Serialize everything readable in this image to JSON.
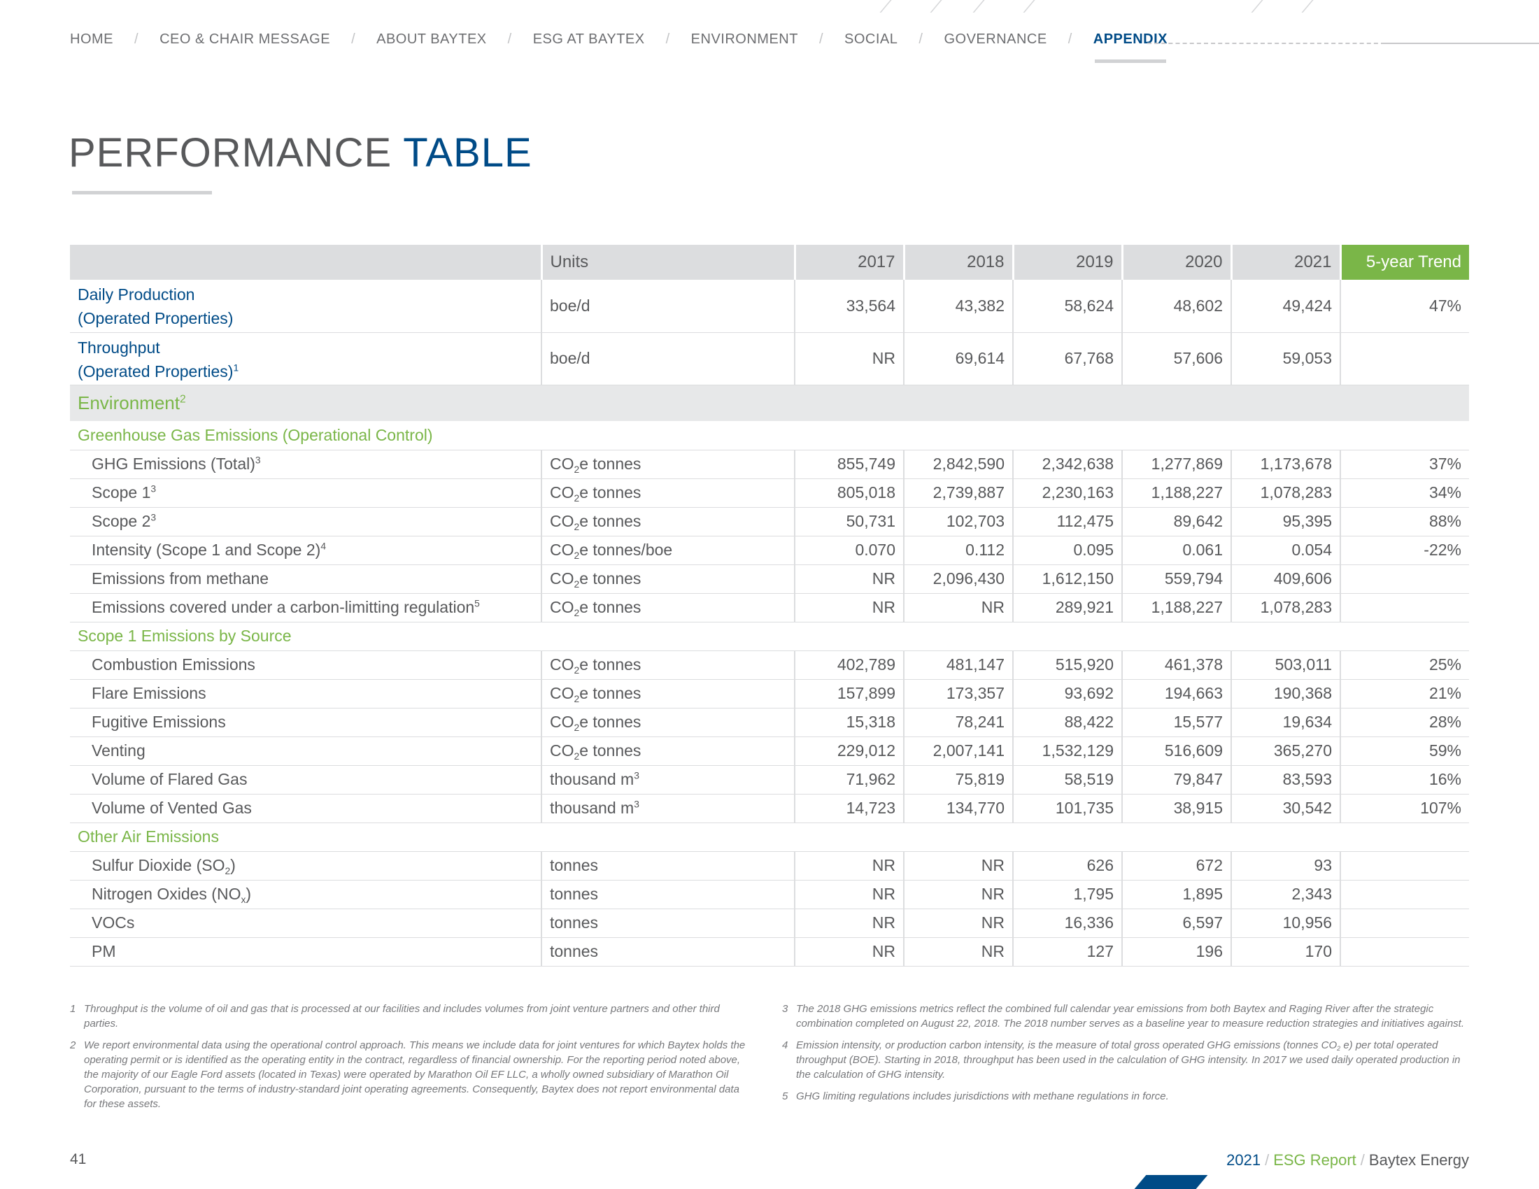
{
  "nav": {
    "items": [
      "HOME",
      "CEO & CHAIR MESSAGE",
      "ABOUT BAYTEX",
      "ESG AT BAYTEX",
      "ENVIRONMENT",
      "SOCIAL",
      "GOVERNANCE",
      "APPENDIX"
    ],
    "separator": "/",
    "active": "APPENDIX"
  },
  "title": {
    "part1": "PERFORMANCE",
    "part2": "TABLE"
  },
  "table": {
    "header": {
      "units": "Units",
      "years": [
        "2017",
        "2018",
        "2019",
        "2020",
        "2021"
      ],
      "trend": "5-year Trend"
    },
    "production": [
      {
        "label": "Daily Production",
        "sublabel": "(Operated Properties)",
        "units": "boe/d",
        "values": [
          "33,564",
          "43,382",
          "58,624",
          "48,602",
          "49,424"
        ],
        "trend": "47%"
      },
      {
        "label": "Throughput",
        "sublabel": "(Operated Properties)",
        "sup": "1",
        "units": "boe/d",
        "values": [
          "NR",
          "69,614",
          "67,768",
          "57,606",
          "59,053"
        ],
        "trend": ""
      }
    ],
    "environment": {
      "label": "Environment",
      "sup": "2"
    },
    "ghg": {
      "title": "Greenhouse Gas Emissions (Operational Control)",
      "rows": [
        {
          "label": "GHG Emissions (Total)",
          "sup": "3",
          "unit_pre": "CO",
          "unit_sub": "2",
          "unit_post": "e tonnes",
          "values": [
            "855,749",
            "2,842,590",
            "2,342,638",
            "1,277,869",
            "1,173,678"
          ],
          "trend": "37%"
        },
        {
          "label": "Scope 1",
          "sup": "3",
          "unit_pre": "CO",
          "unit_sub": "2",
          "unit_post": "e tonnes",
          "values": [
            "805,018",
            "2,739,887",
            "2,230,163",
            "1,188,227",
            "1,078,283"
          ],
          "trend": "34%"
        },
        {
          "label": "Scope 2",
          "sup": "3",
          "unit_pre": "CO",
          "unit_sub": "2",
          "unit_post": "e tonnes",
          "values": [
            "50,731",
            "102,703",
            "112,475",
            "89,642",
            "95,395"
          ],
          "trend": "88%"
        },
        {
          "label": "Intensity (Scope 1 and Scope 2)",
          "sup": "4",
          "unit_pre": "CO",
          "unit_sub": "2",
          "unit_post": "e tonnes/boe",
          "values": [
            "0.070",
            "0.112",
            "0.095",
            "0.061",
            "0.054"
          ],
          "trend": "-22%"
        },
        {
          "label": "Emissions from methane",
          "sup": "",
          "unit_pre": "CO",
          "unit_sub": "2",
          "unit_post": "e tonnes",
          "values": [
            "NR",
            "2,096,430",
            "1,612,150",
            "559,794",
            "409,606"
          ],
          "trend": ""
        },
        {
          "label": "Emissions covered under a carbon-limitting regulation",
          "sup": "5",
          "unit_pre": "CO",
          "unit_sub": "2",
          "unit_post": "e tonnes",
          "values": [
            "NR",
            "NR",
            "289,921",
            "1,188,227",
            "1,078,283"
          ],
          "trend": ""
        }
      ]
    },
    "scope1": {
      "title": "Scope 1 Emissions by Source",
      "rows": [
        {
          "label": "Combustion Emissions",
          "unit_pre": "CO",
          "unit_sub": "2",
          "unit_post": "e tonnes",
          "values": [
            "402,789",
            "481,147",
            "515,920",
            "461,378",
            "503,011"
          ],
          "trend": "25%"
        },
        {
          "label": "Flare Emissions",
          "unit_pre": "CO",
          "unit_sub": "2",
          "unit_post": "e tonnes",
          "values": [
            "157,899",
            "173,357",
            "93,692",
            "194,663",
            "190,368"
          ],
          "trend": "21%"
        },
        {
          "label": "Fugitive Emissions",
          "unit_pre": "CO",
          "unit_sub": "2",
          "unit_post": "e tonnes",
          "values": [
            "15,318",
            "78,241",
            "88,422",
            "15,577",
            "19,634"
          ],
          "trend": "28%"
        },
        {
          "label": "Venting",
          "unit_pre": "CO",
          "unit_sub": "2",
          "unit_post": "e tonnes",
          "values": [
            "229,012",
            "2,007,141",
            "1,532,129",
            "516,609",
            "365,270"
          ],
          "trend": "59%"
        },
        {
          "label": "Volume of Flared Gas",
          "unit_pre": "thousand m",
          "unit_sup": "3",
          "unit_post": "",
          "values": [
            "71,962",
            "75,819",
            "58,519",
            "79,847",
            "83,593"
          ],
          "trend": "16%"
        },
        {
          "label": "Volume of Vented Gas",
          "unit_pre": "thousand m",
          "unit_sup": "3",
          "unit_post": "",
          "values": [
            "14,723",
            "134,770",
            "101,735",
            "38,915",
            "30,542"
          ],
          "trend": "107%"
        }
      ]
    },
    "other_air": {
      "title": "Other Air Emissions",
      "rows": [
        {
          "label_pre": "Sulfur Dioxide (SO",
          "label_sub": "2",
          "label_post": ")",
          "units": "tonnes",
          "values": [
            "NR",
            "NR",
            "626",
            "672",
            "93"
          ],
          "trend": ""
        },
        {
          "label_pre": "Nitrogen Oxides (NO",
          "label_sub": "x",
          "label_post": ")",
          "units": "tonnes",
          "values": [
            "NR",
            "NR",
            "1,795",
            "1,895",
            "2,343"
          ],
          "trend": ""
        },
        {
          "label_pre": "VOCs",
          "label_sub": "",
          "label_post": "",
          "units": "tonnes",
          "values": [
            "NR",
            "NR",
            "16,336",
            "6,597",
            "10,956"
          ],
          "trend": ""
        },
        {
          "label_pre": "PM",
          "label_sub": "",
          "label_post": "",
          "units": "tonnes",
          "values": [
            "NR",
            "NR",
            "127",
            "196",
            "170"
          ],
          "trend": ""
        }
      ]
    }
  },
  "footnotes": [
    {
      "num": "1",
      "text": "Throughput is the volume of oil and gas that is processed at our facilities and includes volumes from joint venture partners and other third parties."
    },
    {
      "num": "2",
      "text": "We report environmental data using the operational control approach. This means we include data for joint ventures for which Baytex holds the operating permit or is identified as the operating entity in the contract, regardless of financial ownership. For the reporting period noted above, the majority of our Eagle Ford assets (located in Texas) were operated by Marathon Oil EF LLC, a wholly owned subsidiary of Marathon Oil Corporation, pursuant to the terms of industry-standard joint operating agreements. Consequently, Baytex does not report environmental data for these assets."
    },
    {
      "num": "3",
      "text": "The 2018 GHG emissions metrics reflect the combined full calendar year emissions from both Baytex and Raging River after the strategic combination completed on August 22, 2018. The 2018 number serves as a baseline year to measure reduction strategies and initiatives against."
    },
    {
      "num": "4",
      "text_pre": "Emission intensity, or production carbon intensity, is the measure of total gross operated GHG emissions (tonnes CO",
      "text_sub": "2",
      "text_post": " e) per total operated throughput (BOE). Starting in 2018, throughput has been used in the calculation of GHG intensity. In 2017 we used daily operated production in the calculation of GHG intensity."
    },
    {
      "num": "5",
      "text": "GHG limiting regulations includes jurisdictions with methane regulations in force."
    }
  ],
  "footer": {
    "page_number": "41",
    "year": "2021",
    "sep": "/",
    "report": "ESG Report",
    "company": "Baytex Energy"
  },
  "colors": {
    "brand_blue": "#004b87",
    "accent_green": "#7ab648",
    "header_grey": "#dcdddf",
    "text_grey": "#58595b"
  }
}
